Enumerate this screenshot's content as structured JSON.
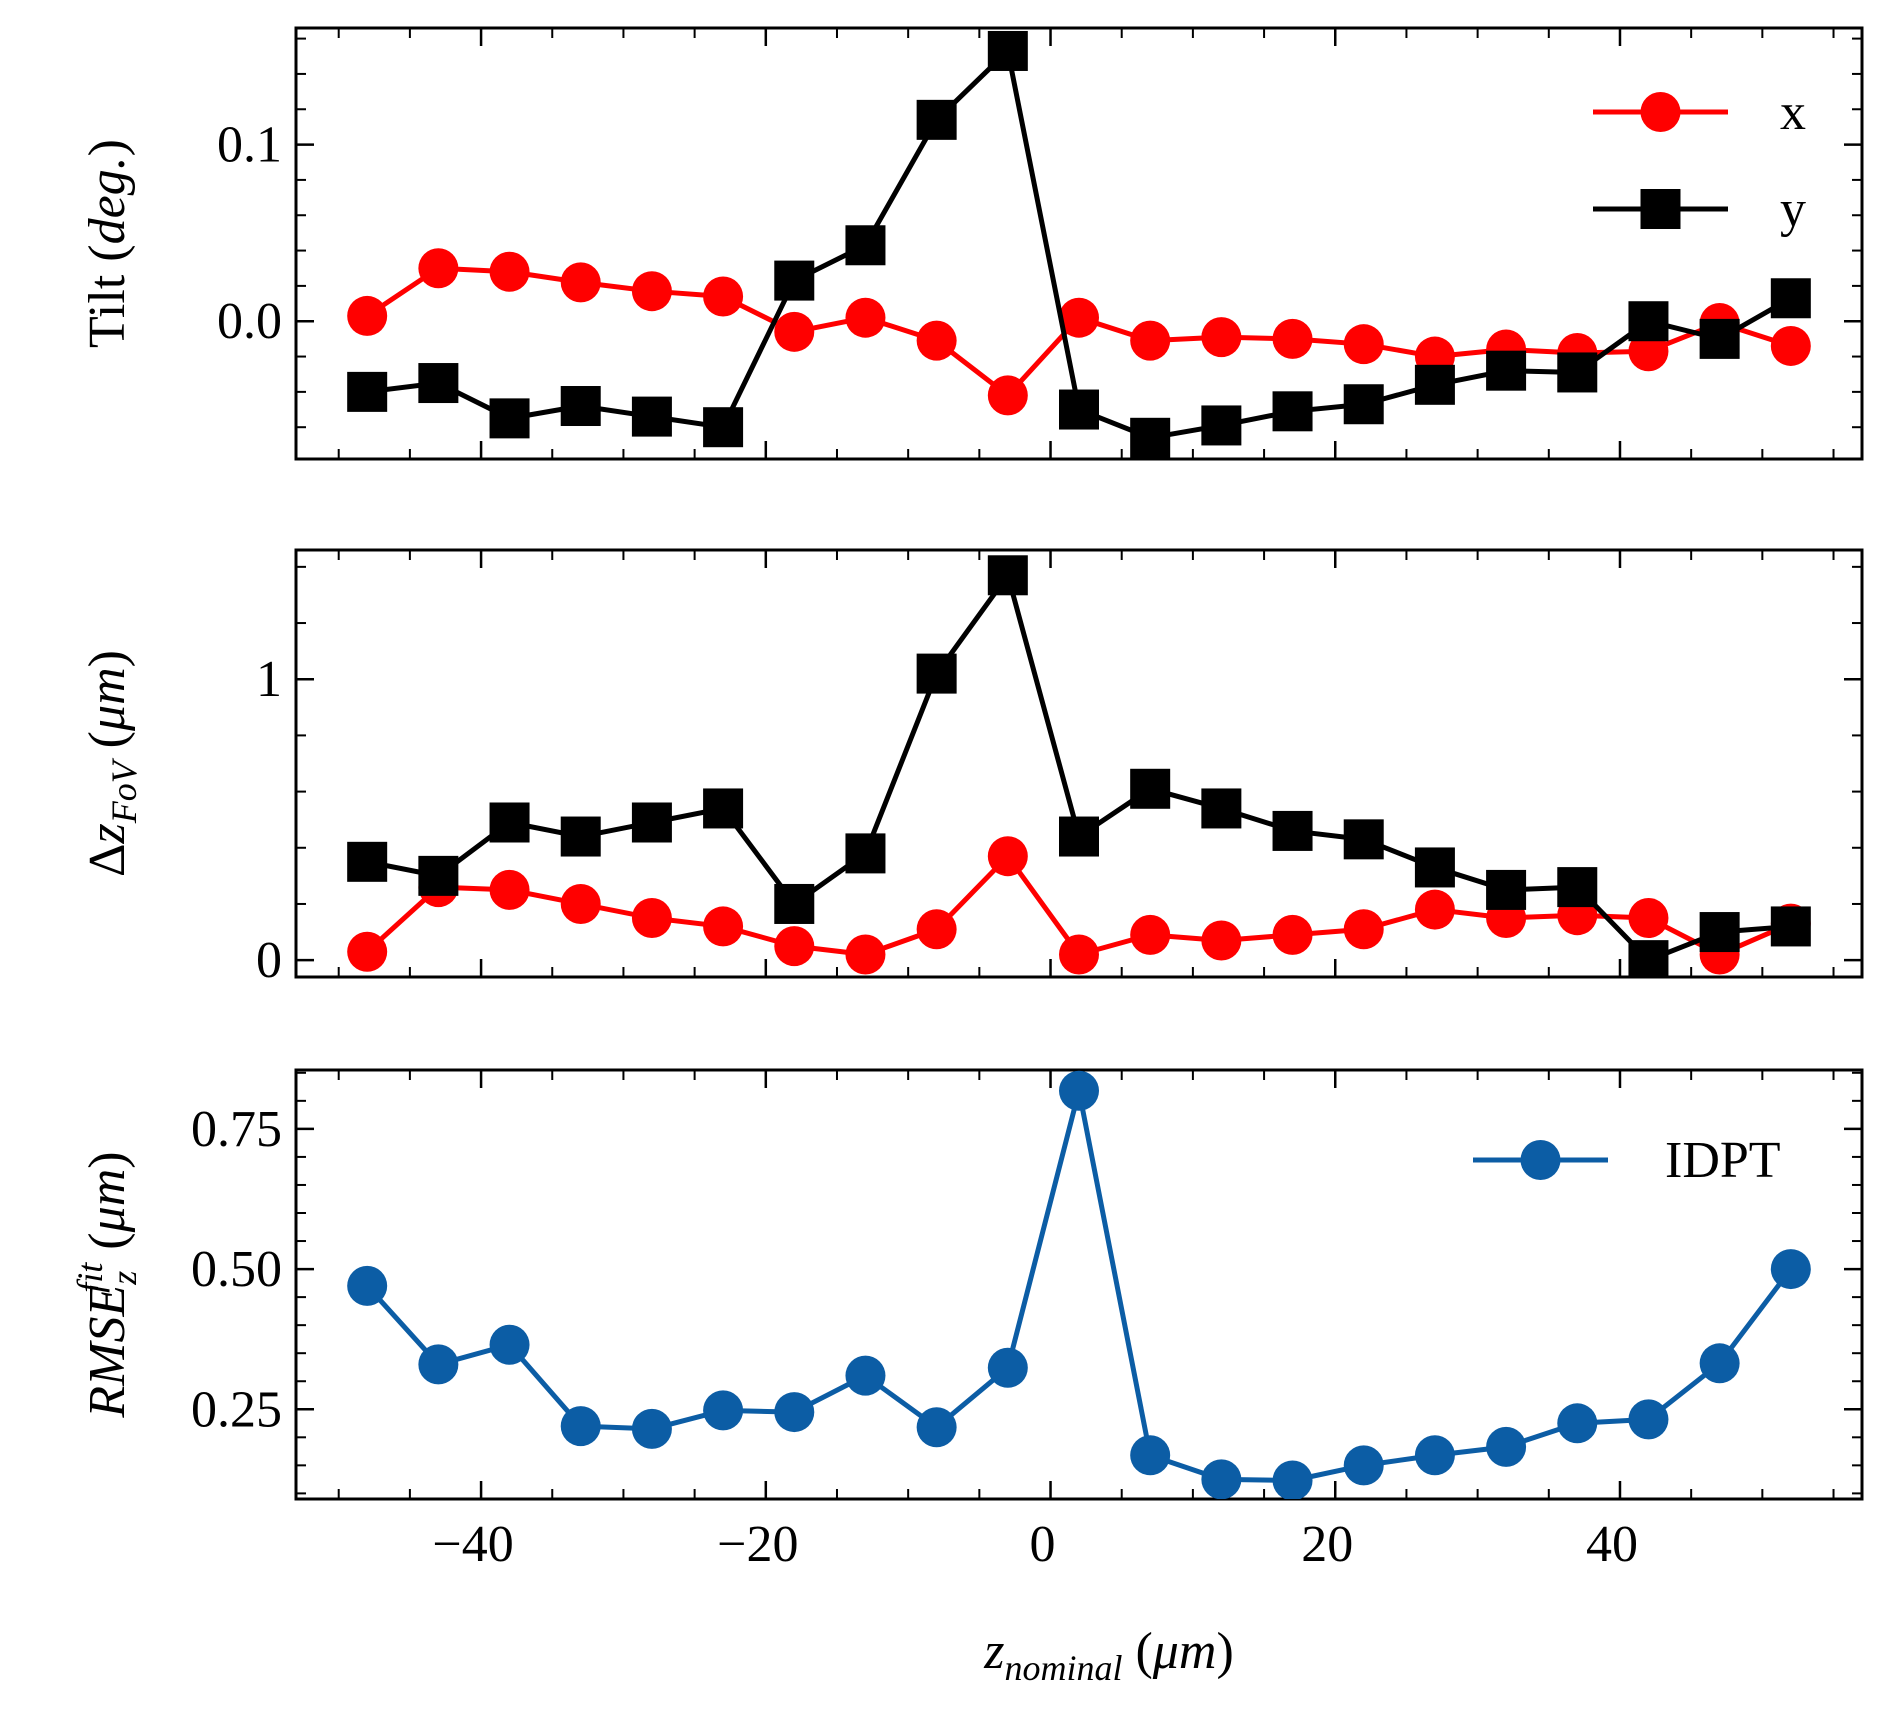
{
  "chart_data": [
    {
      "type": "line",
      "ylabel_prefix": "Tilt",
      "ylabel_italic": "deg.",
      "x": [
        -48,
        -43,
        -38,
        -33,
        -28,
        -23,
        -18,
        -13,
        -8,
        -3,
        2,
        7,
        12,
        17,
        22,
        27,
        32,
        37,
        42,
        47,
        52
      ],
      "xlim": [
        -53,
        57
      ],
      "ylim": [
        -0.078,
        0.166
      ],
      "yticks": [
        0.0,
        0.1
      ],
      "ytick_labels": [
        "0.0",
        "0.1"
      ],
      "legend_position": "top-right",
      "series": [
        {
          "name": "x",
          "color": "#ff0000",
          "marker": "circle",
          "values": [
            0.003,
            0.03,
            0.028,
            0.022,
            0.017,
            0.014,
            -0.006,
            0.002,
            -0.011,
            -0.042,
            0.002,
            -0.011,
            -0.009,
            -0.01,
            -0.013,
            -0.02,
            -0.016,
            -0.018,
            -0.017,
            -0.001,
            -0.014
          ]
        },
        {
          "name": "y",
          "color": "#000000",
          "marker": "square",
          "values": [
            -0.04,
            -0.035,
            -0.055,
            -0.048,
            -0.054,
            -0.06,
            0.023,
            0.043,
            0.114,
            0.153,
            -0.05,
            -0.066,
            -0.059,
            -0.051,
            -0.047,
            -0.036,
            -0.028,
            -0.029,
            0.0,
            -0.01,
            0.013
          ]
        }
      ]
    },
    {
      "type": "line",
      "ylabel_prefix": "Δz",
      "ylabel_sub": "FoV",
      "ylabel_italic": "μm",
      "x": [
        -48,
        -43,
        -38,
        -33,
        -28,
        -23,
        -18,
        -13,
        -8,
        -3,
        2,
        7,
        12,
        17,
        22,
        27,
        32,
        37,
        42,
        47,
        52
      ],
      "xlim": [
        -53,
        57
      ],
      "ylim": [
        -0.06,
        1.46
      ],
      "yticks": [
        0,
        1
      ],
      "ytick_labels": [
        "0",
        "1"
      ],
      "series": [
        {
          "color": "#ff0000",
          "marker": "circle",
          "values": [
            0.03,
            0.26,
            0.25,
            0.2,
            0.15,
            0.12,
            0.05,
            0.02,
            0.11,
            0.37,
            0.02,
            0.09,
            0.07,
            0.09,
            0.11,
            0.18,
            0.15,
            0.16,
            0.15,
            0.02,
            0.13
          ]
        },
        {
          "color": "#000000",
          "marker": "square",
          "values": [
            0.35,
            0.3,
            0.49,
            0.44,
            0.49,
            0.54,
            0.2,
            0.38,
            1.02,
            1.37,
            0.44,
            0.61,
            0.54,
            0.46,
            0.43,
            0.33,
            0.25,
            0.26,
            0.0,
            0.1,
            0.12
          ]
        }
      ]
    },
    {
      "type": "line",
      "ylabel_main": "RMSE",
      "ylabel_sub": "z",
      "ylabel_sup": "fit",
      "ylabel_italic": "μm",
      "x": [
        -48,
        -43,
        -38,
        -33,
        -28,
        -23,
        -18,
        -13,
        -8,
        -3,
        2,
        7,
        12,
        17,
        22,
        27,
        32,
        37,
        42,
        47,
        52
      ],
      "xlim": [
        -53,
        57
      ],
      "xticks": [
        -40,
        -20,
        0,
        20,
        40
      ],
      "xtick_labels": [
        "−40",
        "−20",
        "0",
        "20",
        "40"
      ],
      "ylim": [
        0.09,
        0.855
      ],
      "yticks": [
        0.25,
        0.5,
        0.75
      ],
      "ytick_labels": [
        "0.25",
        "0.50",
        "0.75"
      ],
      "xlabel_main": "z",
      "xlabel_sub": "nominal",
      "xlabel_italic": "μm",
      "legend_position": "top-right",
      "series": [
        {
          "name": "IDPT",
          "color": "#0c5da5",
          "marker": "circle",
          "values": [
            0.47,
            0.33,
            0.365,
            0.22,
            0.215,
            0.248,
            0.245,
            0.31,
            0.218,
            0.324,
            0.818,
            0.168,
            0.125,
            0.123,
            0.15,
            0.168,
            0.183,
            0.225,
            0.232,
            0.332,
            0.5
          ]
        }
      ]
    }
  ]
}
